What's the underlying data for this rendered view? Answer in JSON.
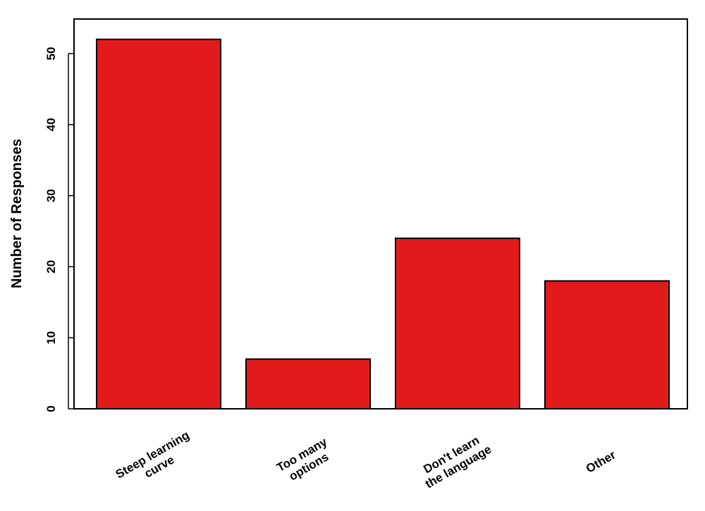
{
  "chart_data": {
    "type": "bar",
    "y_label": "Number of Responses",
    "categories": [
      "Steep learning\ncurve",
      "Too many\noptions",
      "Don't learn\nthe language",
      "Other"
    ],
    "values": [
      52,
      7,
      24,
      18
    ],
    "color": "#e31a1c",
    "ylim": [
      0,
      54.86
    ],
    "yticks": [
      0,
      10,
      20,
      30,
      40,
      50
    ]
  }
}
